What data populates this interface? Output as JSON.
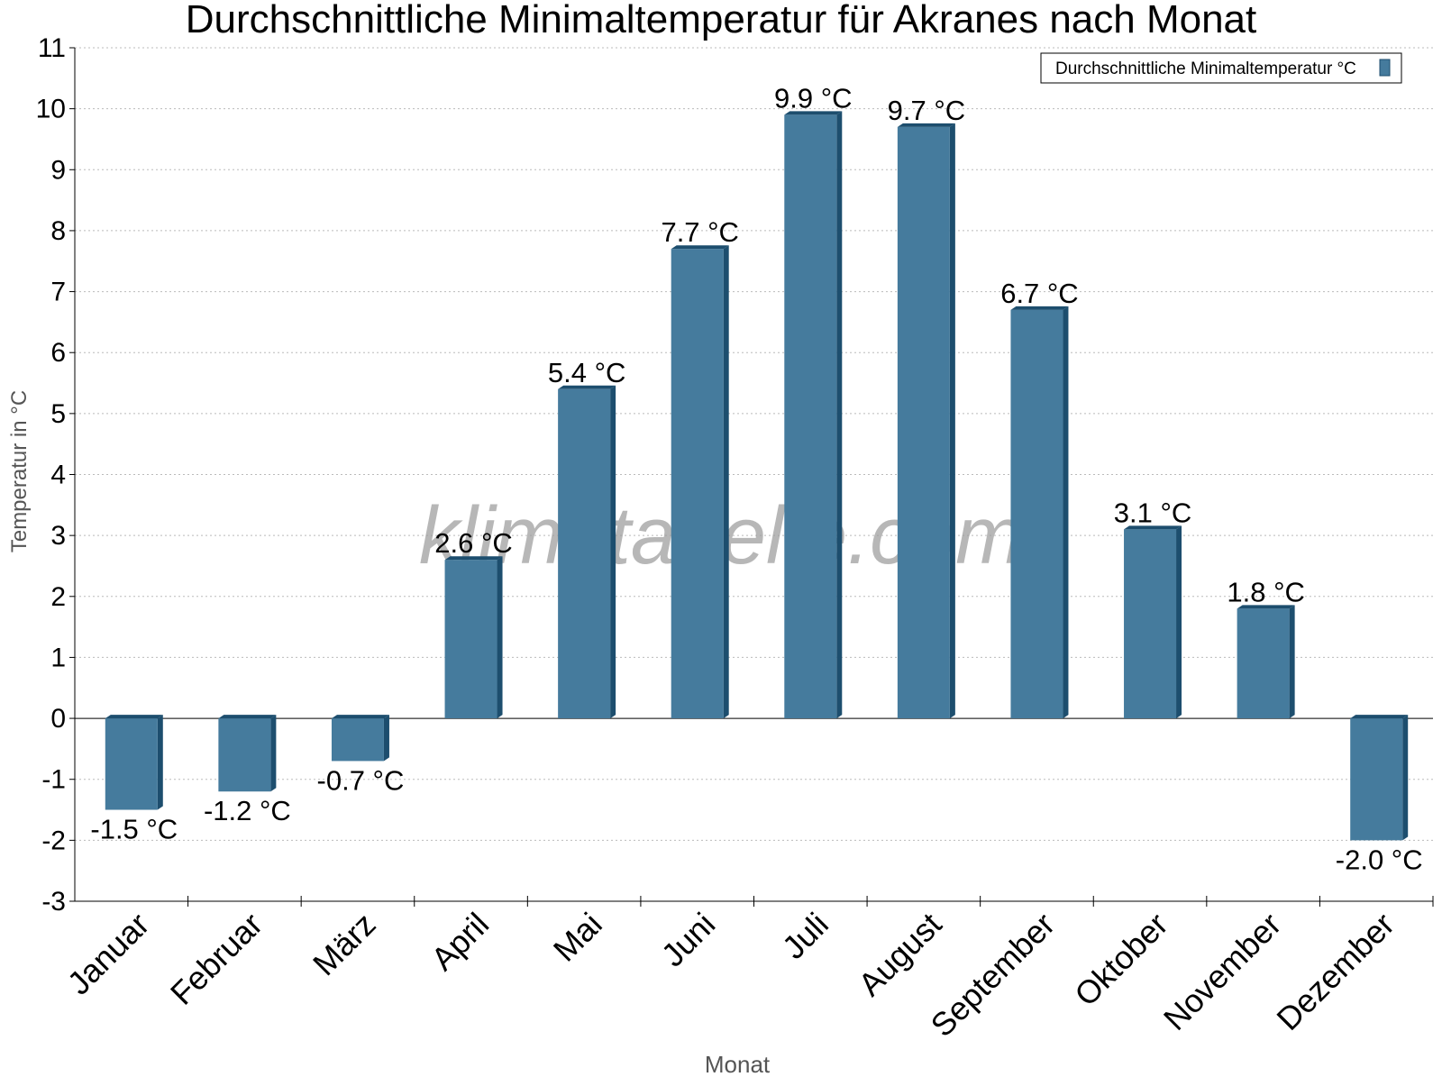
{
  "chart_data": {
    "type": "bar",
    "title": "Durchschnittliche Minimaltemperatur für Akranes nach Monat",
    "xlabel": "Monat",
    "ylabel": "Temperatur in °C",
    "ylim": [
      -3,
      11
    ],
    "yticks": [
      -3,
      -2,
      -1,
      0,
      1,
      2,
      3,
      4,
      5,
      6,
      7,
      8,
      9,
      10,
      11
    ],
    "grid": true,
    "legend_position": "top-right",
    "watermark": "klimatabelle.com",
    "categories": [
      "Januar",
      "Februar",
      "März",
      "April",
      "Mai",
      "Juni",
      "Juli",
      "August",
      "September",
      "Oktober",
      "November",
      "Dezember"
    ],
    "series": [
      {
        "name": "Durchschnittliche Minimaltemperatur °C",
        "values": [
          -1.5,
          -1.2,
          -0.7,
          2.6,
          5.4,
          7.7,
          9.9,
          9.7,
          6.7,
          3.1,
          1.8,
          -2.0
        ],
        "labels": [
          "-1.5 °C",
          "-1.2 °C",
          "-0.7 °C",
          "2.6 °C",
          "5.4 °C",
          "7.7 °C",
          "9.9 °C",
          "9.7 °C",
          "6.7 °C",
          "3.1 °C",
          "1.8 °C",
          "-2.0 °C"
        ],
        "color": "#457b9d",
        "edge_color": "#1d4e6e"
      }
    ]
  }
}
